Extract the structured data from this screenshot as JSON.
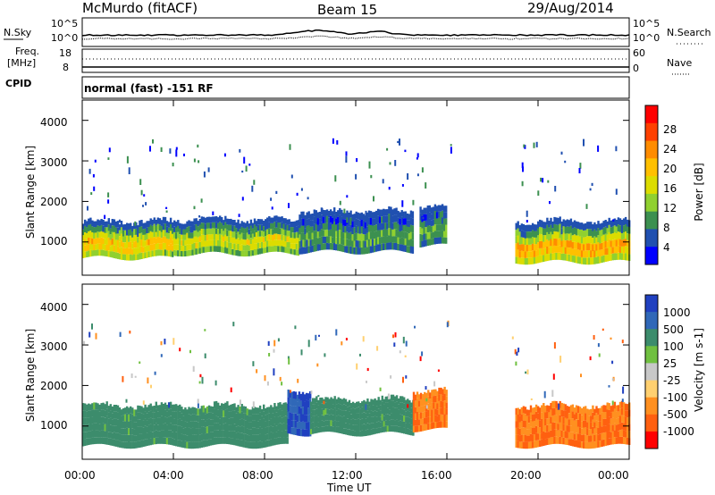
{
  "header": {
    "station": "McMurdo (fitACF)",
    "beam": "Beam 15",
    "date": "29/Aug/2014"
  },
  "noise_panel": {
    "left_label": "N.Sky",
    "right_label": "N.Search",
    "left_ticks": [
      "10^5",
      "10^0"
    ],
    "right_ticks": [
      "10^5",
      "10^0"
    ]
  },
  "freq_panel": {
    "left_label_1": "Freq.",
    "left_label_2": "[MHz]",
    "left_ticks": [
      "18",
      "8"
    ],
    "right_label": "Nave",
    "right_ticks": [
      "60",
      "0"
    ]
  },
  "cpid_panel": {
    "label": "CPID",
    "text": "normal (fast) -151 RF"
  },
  "chart_data": [
    {
      "type": "heatmap",
      "title": "Power",
      "xlabel": "",
      "ylabel": "Slant Range [km]",
      "xlim": [
        0,
        24
      ],
      "ylim": [
        180,
        4500
      ],
      "yticks": [
        "1000",
        "2000",
        "3000",
        "4000"
      ],
      "colorbar": {
        "label": "Power [dB]",
        "ticks": [
          "28",
          "24",
          "20",
          "16",
          "12",
          "8",
          "4"
        ],
        "colors": [
          "#ff0000",
          "#ff4000",
          "#ff8c00",
          "#ffc000",
          "#dcdc00",
          "#90d030",
          "#3c9050",
          "#2050b0",
          "#0000ff"
        ]
      },
      "echo_bands": [
        {
          "t_start": 0.0,
          "t_end": 4.0,
          "range_low": 600,
          "range_high": 1450,
          "level_db": 22
        },
        {
          "t_start": 4.0,
          "t_end": 9.5,
          "range_low": 700,
          "range_high": 1500,
          "level_db": 18
        },
        {
          "t_start": 9.5,
          "t_end": 14.5,
          "range_low": 750,
          "range_high": 1700,
          "level_db": 10
        },
        {
          "t_start": 14.8,
          "t_end": 16.0,
          "range_low": 900,
          "range_high": 1800,
          "level_db": 10
        },
        {
          "t_start": 19.0,
          "t_end": 24.0,
          "range_low": 500,
          "range_high": 1450,
          "level_db": 24
        }
      ]
    },
    {
      "type": "heatmap",
      "title": "Velocity",
      "xlabel": "Time UT",
      "ylabel": "Slant Range [km]",
      "xlim": [
        0,
        24
      ],
      "ylim": [
        180,
        4500
      ],
      "xticks": [
        "00:00",
        "04:00",
        "08:00",
        "12:00",
        "16:00",
        "20:00",
        "00:00"
      ],
      "yticks": [
        "1000",
        "2000",
        "3000",
        "4000"
      ],
      "colorbar": {
        "label": "Velocity [m s-1]",
        "ticks": [
          "1000",
          "500",
          "100",
          "25",
          "-25",
          "-100",
          "-500",
          "-1000"
        ],
        "colors": [
          "#2040c0",
          "#3068b8",
          "#3c8c6c",
          "#70c040",
          "#c8c8c8",
          "#ffd070",
          "#ff9020",
          "#ff6010",
          "#ff0000"
        ]
      },
      "echo_bands": [
        {
          "t_start": 0.0,
          "t_end": 9.0,
          "range_low": 500,
          "range_high": 1450,
          "velocity": 100
        },
        {
          "t_start": 9.0,
          "t_end": 10.0,
          "range_low": 800,
          "range_high": 1800,
          "velocity": 800
        },
        {
          "t_start": 10.0,
          "t_end": 14.5,
          "range_low": 800,
          "range_high": 1600,
          "velocity": 100
        },
        {
          "t_start": 14.5,
          "t_end": 16.0,
          "range_low": 900,
          "range_high": 1800,
          "velocity": -300
        },
        {
          "t_start": 19.0,
          "t_end": 24.0,
          "range_low": 500,
          "range_high": 1450,
          "velocity": -300
        }
      ]
    }
  ]
}
